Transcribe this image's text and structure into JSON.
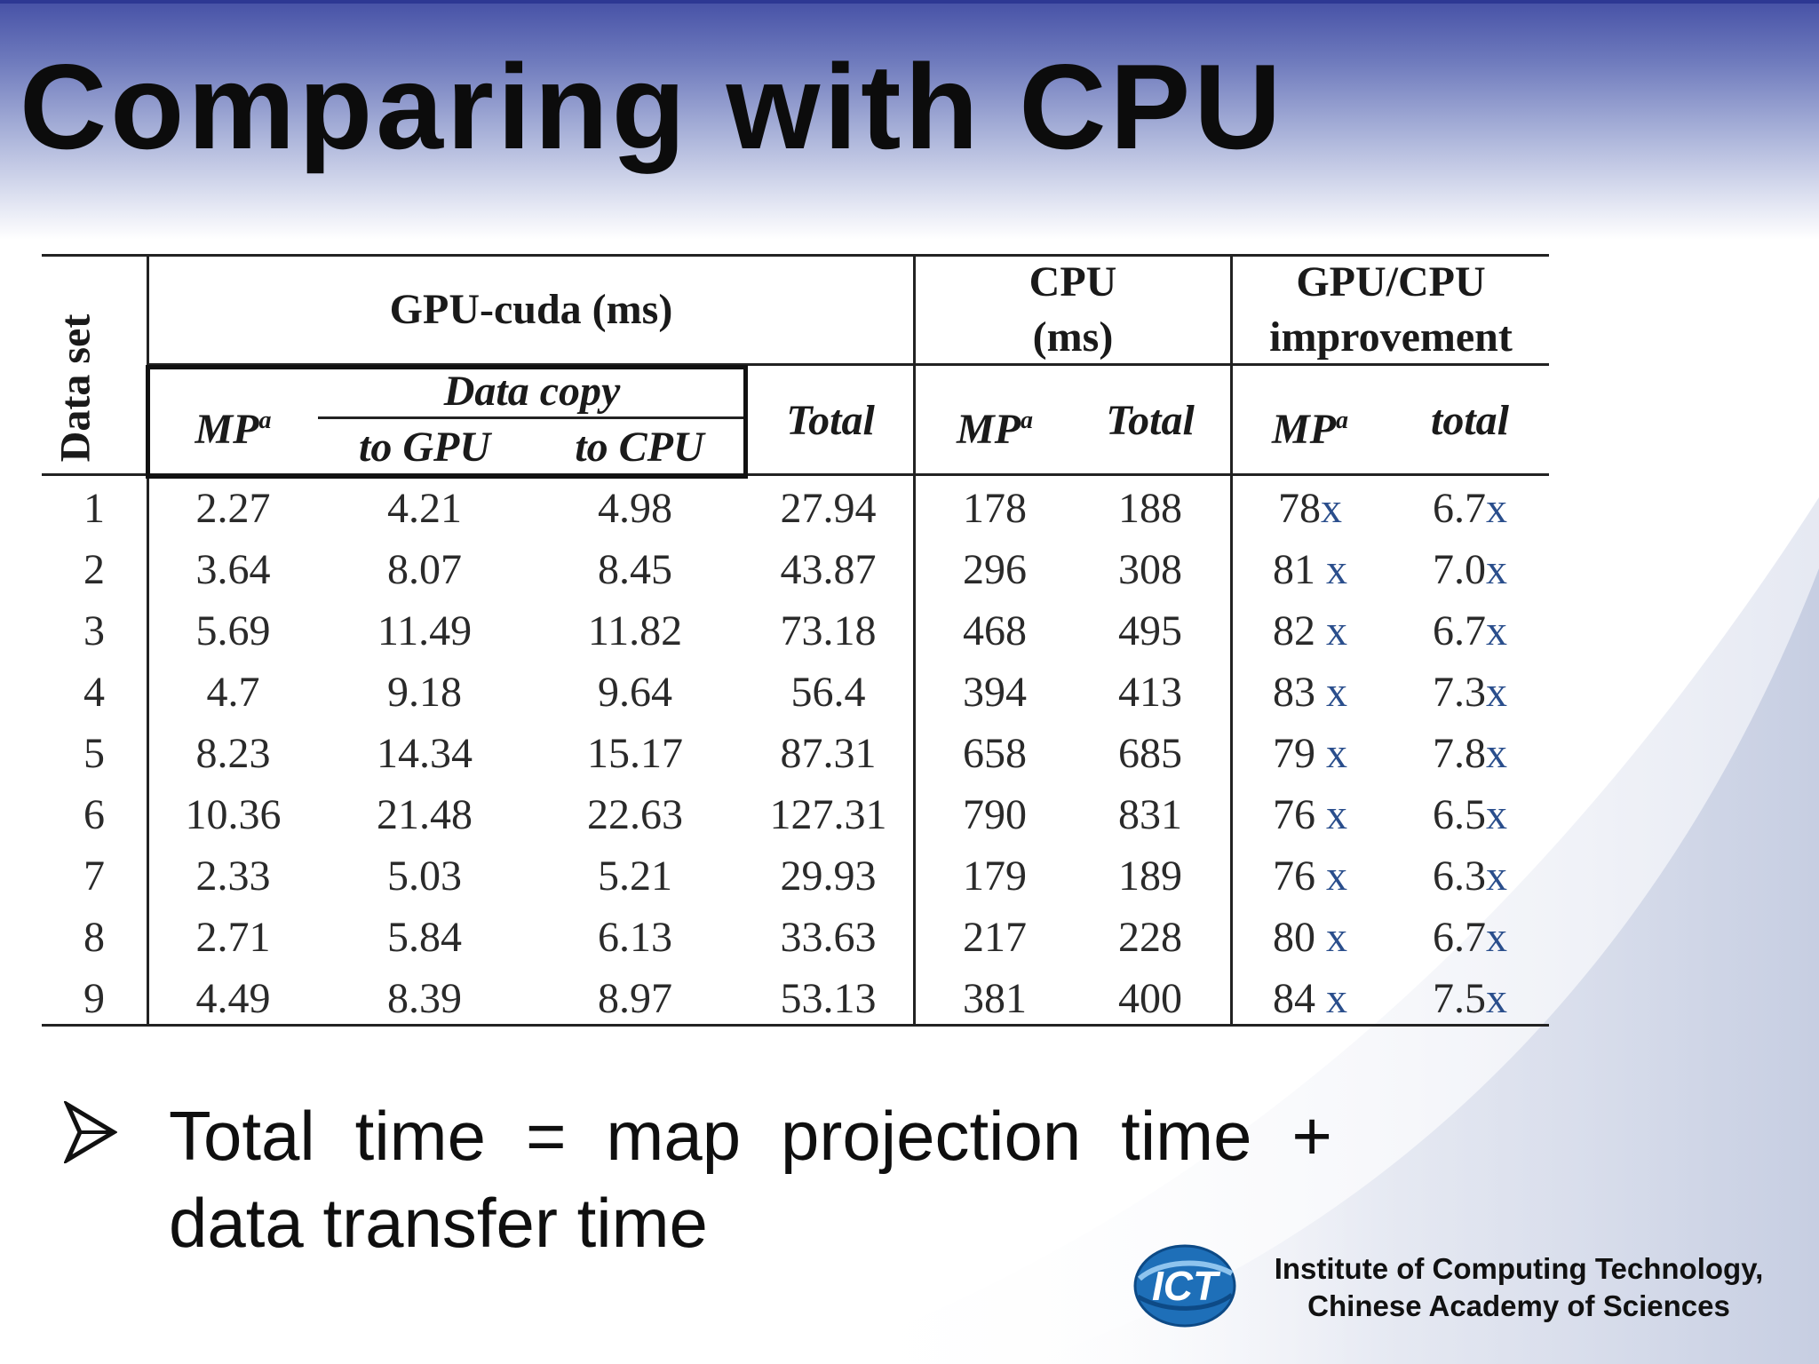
{
  "slide": {
    "title": "Comparing with CPU",
    "bullet": "Total time = map projection time + data transfer time",
    "footer_institute_line1": "Institute  of Computing Technology,",
    "footer_institute_line2": "Chinese Academy of  Sciences",
    "logo_text": "ICT",
    "colors": {
      "header": "#4651a6",
      "accent_x": "#2a4e8c"
    },
    "icons": {
      "bullet": "arrowhead-bullet-icon",
      "logo": "ict-logo-icon"
    }
  },
  "table": {
    "headers": {
      "data_set": "Data set",
      "gpu_group": "GPU-cuda (ms)",
      "cpu_group_line1": "CPU",
      "cpu_group_line2": "(ms)",
      "impr_group_line1": "GPU/CPU",
      "impr_group_line2": "improvement",
      "gpu_mp": "MP",
      "mp_sup": "a",
      "data_copy": "Data copy",
      "to_gpu": "to GPU",
      "to_cpu": "to CPU",
      "gpu_total": "Total",
      "cpu_mp": "MP",
      "cpu_total": "Total",
      "impr_mp": "MP",
      "impr_total": "total"
    },
    "x_suffix": "x",
    "rows": [
      {
        "set": "1",
        "gpu_mp": "2.27",
        "to_gpu": "4.21",
        "to_cpu": "4.98",
        "gpu_total": "27.94",
        "cpu_mp": "178",
        "cpu_total": "188",
        "impr_mp": "78",
        "impr_total": "6.7"
      },
      {
        "set": "2",
        "gpu_mp": "3.64",
        "to_gpu": "8.07",
        "to_cpu": "8.45",
        "gpu_total": "43.87",
        "cpu_mp": "296",
        "cpu_total": "308",
        "impr_mp": "81 ",
        "impr_total": "7.0"
      },
      {
        "set": "3",
        "gpu_mp": "5.69",
        "to_gpu": "11.49",
        "to_cpu": "11.82",
        "gpu_total": "73.18",
        "cpu_mp": "468",
        "cpu_total": "495",
        "impr_mp": "82 ",
        "impr_total": "6.7"
      },
      {
        "set": "4",
        "gpu_mp": "4.7",
        "to_gpu": "9.18",
        "to_cpu": "9.64",
        "gpu_total": "56.4",
        "cpu_mp": "394",
        "cpu_total": "413",
        "impr_mp": "83 ",
        "impr_total": "7.3"
      },
      {
        "set": "5",
        "gpu_mp": "8.23",
        "to_gpu": "14.34",
        "to_cpu": "15.17",
        "gpu_total": "87.31",
        "cpu_mp": "658",
        "cpu_total": "685",
        "impr_mp": "79 ",
        "impr_total": "7.8"
      },
      {
        "set": "6",
        "gpu_mp": "10.36",
        "to_gpu": "21.48",
        "to_cpu": "22.63",
        "gpu_total": "127.31",
        "cpu_mp": "790",
        "cpu_total": "831",
        "impr_mp": "76 ",
        "impr_total": "6.5"
      },
      {
        "set": "7",
        "gpu_mp": "2.33",
        "to_gpu": "5.03",
        "to_cpu": "5.21",
        "gpu_total": "29.93",
        "cpu_mp": "179",
        "cpu_total": "189",
        "impr_mp": "76 ",
        "impr_total": "6.3"
      },
      {
        "set": "8",
        "gpu_mp": "2.71",
        "to_gpu": "5.84",
        "to_cpu": "6.13",
        "gpu_total": "33.63",
        "cpu_mp": "217",
        "cpu_total": "228",
        "impr_mp": "80 ",
        "impr_total": "6.7"
      },
      {
        "set": "9",
        "gpu_mp": "4.49",
        "to_gpu": "8.39",
        "to_cpu": "8.97",
        "gpu_total": "53.13",
        "cpu_mp": "381",
        "cpu_total": "400",
        "impr_mp": "84 ",
        "impr_total": "7.5"
      }
    ]
  }
}
